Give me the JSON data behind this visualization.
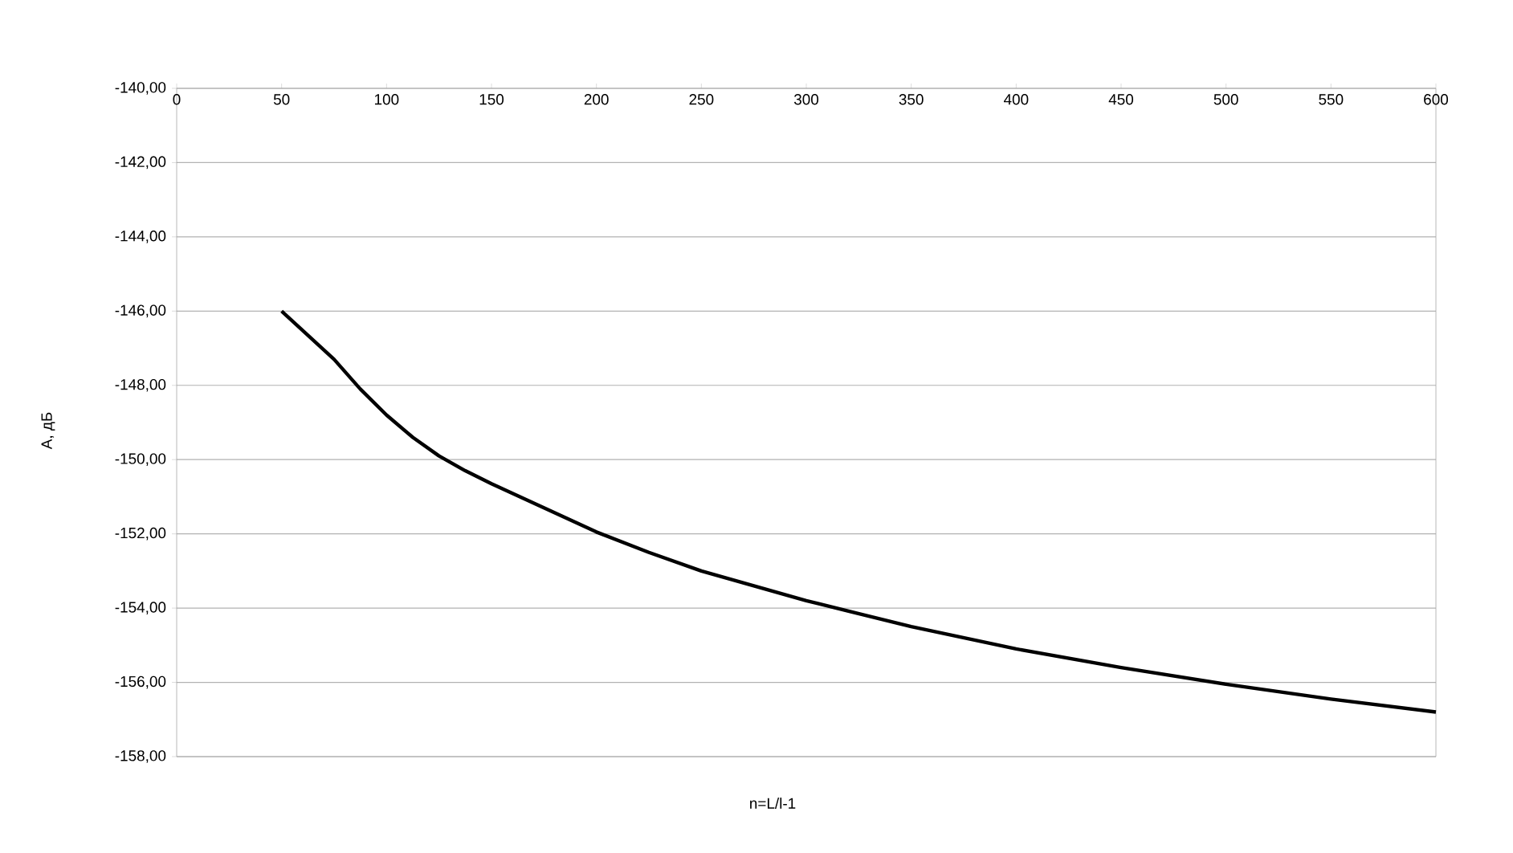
{
  "chart_data": {
    "type": "line",
    "xlabel": "n=L/l-1",
    "ylabel": "A, дБ",
    "x": [
      50,
      62.5,
      75,
      87.5,
      100,
      112.5,
      125,
      137.5,
      150,
      175,
      200,
      225,
      250,
      275,
      300,
      350,
      400,
      450,
      500,
      550,
      600
    ],
    "series": [
      {
        "color": "#000000",
        "values": [
          -146.0,
          -146.65,
          -147.3,
          -148.1,
          -148.8,
          -149.4,
          -149.9,
          -150.3,
          -150.65,
          -151.3,
          -151.95,
          -152.5,
          -153.0,
          -153.4,
          -153.8,
          -154.5,
          -155.1,
          -155.6,
          -156.05,
          -156.45,
          -156.8
        ]
      }
    ],
    "xlim": [
      0,
      600
    ],
    "xticks": [
      0,
      50,
      100,
      150,
      200,
      250,
      300,
      350,
      400,
      450,
      500,
      550,
      600
    ],
    "ylim": [
      -158,
      -140
    ],
    "yticks": [
      {
        "value": -158,
        "label": "-158,00"
      },
      {
        "value": -156,
        "label": "-156,00"
      },
      {
        "value": -154,
        "label": "-154,00"
      },
      {
        "value": -152,
        "label": "-152,00"
      },
      {
        "value": -150,
        "label": "-150,00"
      },
      {
        "value": -148,
        "label": "-148,00"
      },
      {
        "value": -146,
        "label": "-146,00"
      },
      {
        "value": -144,
        "label": "-144,00"
      },
      {
        "value": -142,
        "label": "-142,00"
      },
      {
        "value": -140,
        "label": "-140,00"
      }
    ],
    "grid": "y",
    "marker": "none",
    "line_style": "solid"
  }
}
